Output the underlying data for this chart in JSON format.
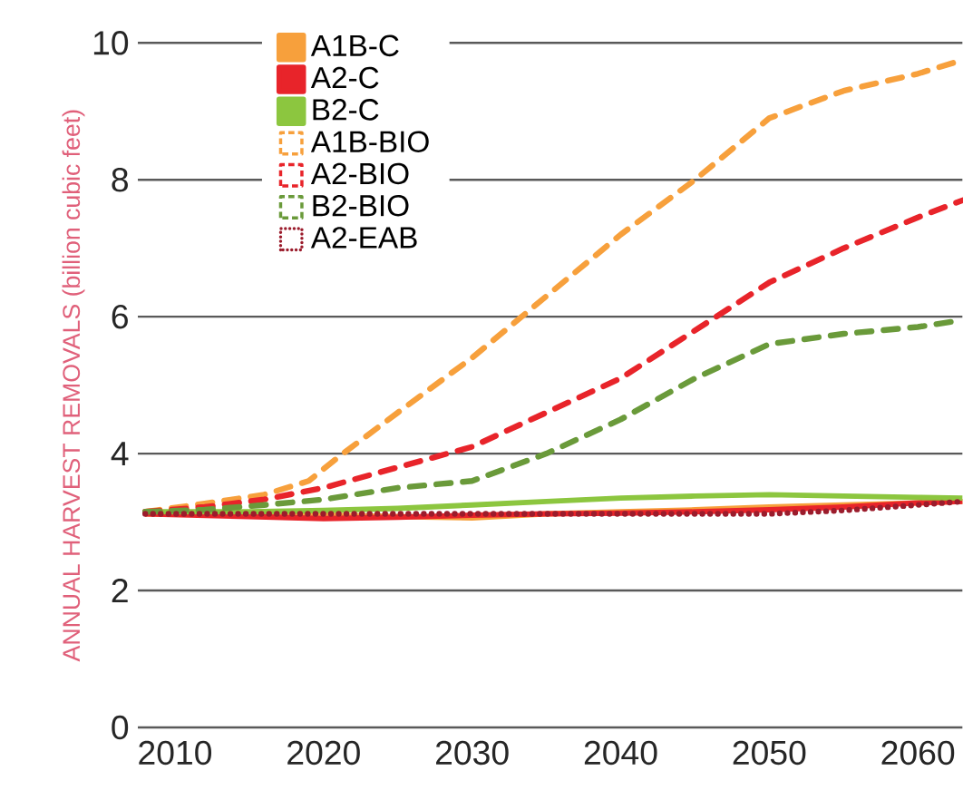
{
  "chart_data": {
    "type": "line",
    "ylabel": "ANNUAL HARVEST REMOVALS (billion cubic feet)",
    "xlim": [
      2007.5,
      2063
    ],
    "xticks": [
      2010,
      2020,
      2030,
      2040,
      2050,
      2060
    ],
    "ylim": [
      0,
      10
    ],
    "yticks": [
      0,
      2,
      4,
      6,
      8,
      10
    ],
    "grid": "y",
    "legend": "top left",
    "marker": "none",
    "series": [
      {
        "name": "A1B-C",
        "color": "#f7a03c",
        "line_style": "solid",
        "x": [
          2008,
          2015,
          2020,
          2025,
          2030,
          2035,
          2040,
          2045,
          2050,
          2055,
          2060,
          2063
        ],
        "values": [
          3.12,
          3.12,
          3.1,
          3.08,
          3.06,
          3.12,
          3.15,
          3.18,
          3.22,
          3.25,
          3.28,
          3.3
        ]
      },
      {
        "name": "A2-C",
        "color": "#e8242a",
        "line_style": "solid",
        "x": [
          2008,
          2015,
          2020,
          2025,
          2030,
          2035,
          2040,
          2045,
          2050,
          2055,
          2060,
          2063
        ],
        "values": [
          3.12,
          3.08,
          3.05,
          3.07,
          3.1,
          3.12,
          3.13,
          3.15,
          3.18,
          3.22,
          3.28,
          3.3
        ]
      },
      {
        "name": "B2-C",
        "color": "#8cc63f",
        "line_style": "solid",
        "x": [
          2008,
          2015,
          2020,
          2025,
          2030,
          2035,
          2040,
          2045,
          2050,
          2055,
          2060,
          2063
        ],
        "values": [
          3.15,
          3.15,
          3.17,
          3.2,
          3.25,
          3.3,
          3.35,
          3.38,
          3.4,
          3.38,
          3.36,
          3.35
        ]
      },
      {
        "name": "A1B-BIO",
        "color": "#f7a03c",
        "line_style": "dashed",
        "x": [
          2008,
          2012,
          2016,
          2019,
          2021,
          2025,
          2030,
          2035,
          2040,
          2045,
          2050,
          2055,
          2060,
          2063
        ],
        "values": [
          3.15,
          3.27,
          3.4,
          3.6,
          3.95,
          4.6,
          5.4,
          6.3,
          7.2,
          8.0,
          8.9,
          9.3,
          9.55,
          9.75
        ]
      },
      {
        "name": "A2-BIO",
        "color": "#e8242a",
        "line_style": "dashed",
        "x": [
          2008,
          2012,
          2016,
          2020,
          2025,
          2030,
          2035,
          2040,
          2045,
          2050,
          2055,
          2060,
          2063
        ],
        "values": [
          3.15,
          3.22,
          3.33,
          3.5,
          3.8,
          4.1,
          4.6,
          5.1,
          5.8,
          6.5,
          7.0,
          7.45,
          7.7
        ]
      },
      {
        "name": "B2-BIO",
        "color": "#6a9a3a",
        "line_style": "dashed",
        "x": [
          2008,
          2012,
          2016,
          2020,
          2025,
          2030,
          2035,
          2040,
          2045,
          2050,
          2055,
          2060,
          2063
        ],
        "values": [
          3.15,
          3.18,
          3.25,
          3.33,
          3.5,
          3.6,
          4.0,
          4.5,
          5.1,
          5.6,
          5.75,
          5.85,
          5.95
        ]
      },
      {
        "name": "A2-EAB",
        "color": "#9b1c2c",
        "line_style": "dotted",
        "x": [
          2008,
          2020,
          2030,
          2040,
          2050,
          2055,
          2060,
          2063
        ],
        "values": [
          3.12,
          3.12,
          3.12,
          3.12,
          3.12,
          3.17,
          3.25,
          3.3
        ]
      }
    ]
  }
}
